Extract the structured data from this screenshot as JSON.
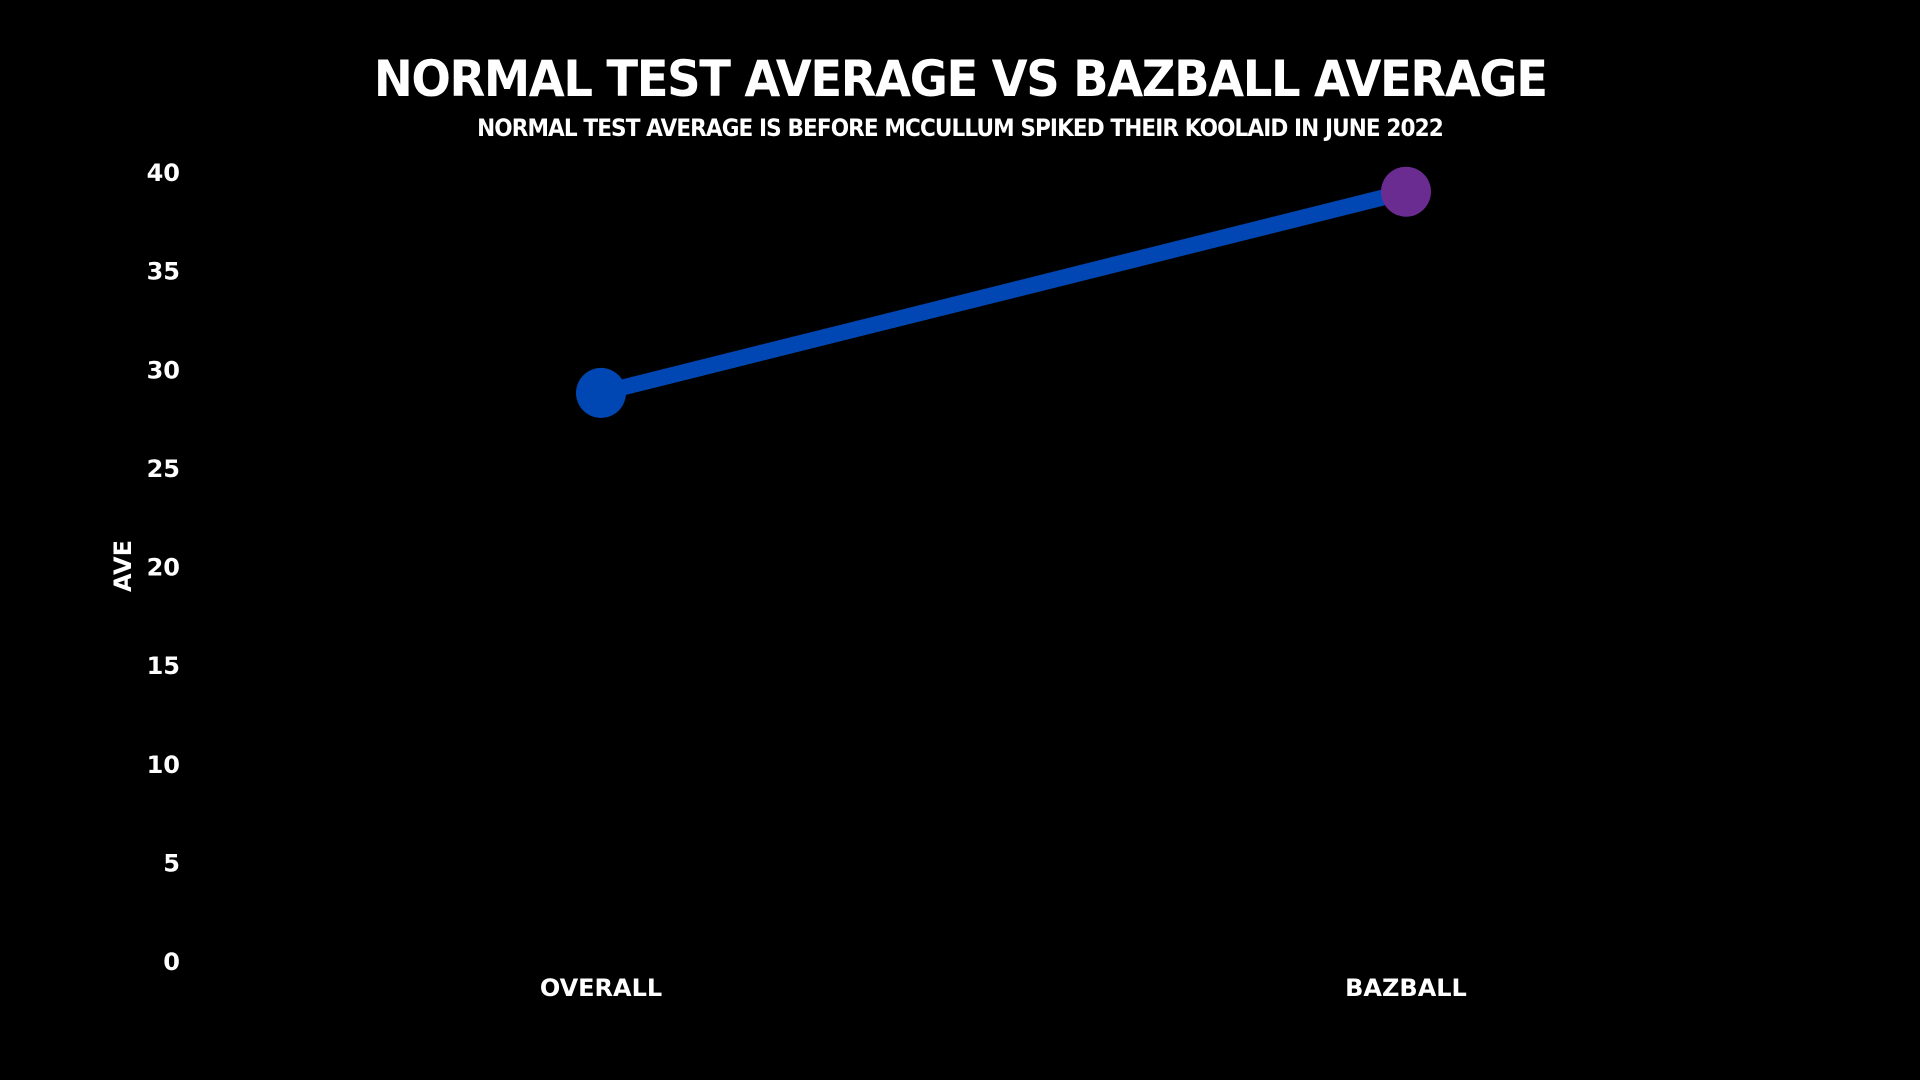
{
  "chart_data": {
    "type": "line",
    "title": "NORMAL TEST AVERAGE VS BAZBALL AVERAGE",
    "subtitle": "NORMAL TEST AVERAGE IS BEFORE MCCULLUM SPIKED THEIR KOOLAID IN JUNE 2022",
    "xlabel": "",
    "ylabel": "AVE",
    "categories": [
      "OVERALL",
      "BAZBALL"
    ],
    "values": [
      28.8,
      39.0
    ],
    "ylim": [
      0,
      40
    ],
    "yticks": [
      0,
      5,
      10,
      15,
      20,
      25,
      30,
      35,
      40
    ],
    "grid": false,
    "legend": "none",
    "colors": {
      "background": "#000000",
      "line": "#0047b3",
      "points": [
        "#0047b3",
        "#6a2c91"
      ],
      "text": "#ffffff"
    }
  }
}
